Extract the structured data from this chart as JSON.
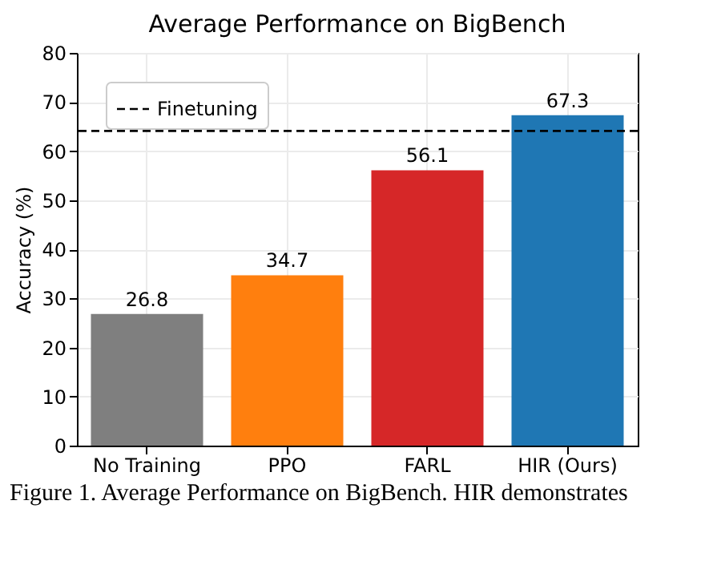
{
  "chart_data": {
    "type": "bar",
    "title": "Average Performance on BigBench",
    "ylabel": "Accuracy (%)",
    "categories": [
      "No Training",
      "PPO",
      "FARL",
      "HIR (Ours)"
    ],
    "values": [
      26.8,
      34.7,
      56.1,
      67.3
    ],
    "colors": [
      "#7f7f7f",
      "#ff7f0e",
      "#d62728",
      "#1f77b4"
    ],
    "ylim": [
      0,
      80
    ],
    "yticks": [
      0,
      10,
      20,
      30,
      40,
      50,
      60,
      70,
      80
    ],
    "grid": true,
    "data_labels": true,
    "ref_lines": [
      {
        "axis": "y",
        "value": 64.1,
        "label": "Finetuning",
        "color": "#000000",
        "line_style": "dashed"
      }
    ],
    "legend": "top left",
    "annotations": [
      "Figure 1. Average Performance on BigBench. HIR demonstrates"
    ]
  }
}
